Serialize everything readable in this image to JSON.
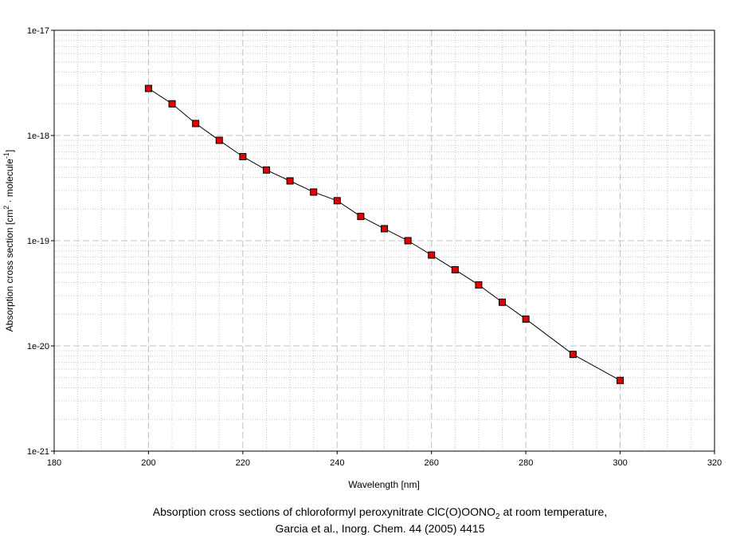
{
  "chart_data": {
    "type": "line",
    "title": "",
    "caption": {
      "line1_prefix": "Absorption cross sections of chloroformyl peroxynitrate ClC(O)OONO",
      "line1_sub": "2",
      "line1_suffix": " at room temperature,",
      "line2": "Garcia et al., Inorg. Chem. 44 (2005) 4415"
    },
    "xlabel": "Wavelength [nm]",
    "ylabel": {
      "prefix": "Absorption cross section [cm",
      "sup1": "2",
      "middle": " · molecule",
      "sup2": "-1",
      "suffix": "]"
    },
    "xlim": [
      180,
      320
    ],
    "ylim": [
      1e-21,
      1e-17
    ],
    "yscale": "log",
    "xticks": [
      180,
      200,
      220,
      240,
      260,
      280,
      300,
      320
    ],
    "xtick_labels": [
      "180",
      "200",
      "220",
      "240",
      "260",
      "280",
      "300",
      "320"
    ],
    "yticks": [
      1e-21,
      1e-20,
      1e-19,
      1e-18,
      1e-17
    ],
    "ytick_labels": [
      "1e-21",
      "1e-20",
      "1e-19",
      "1e-18",
      "1e-17"
    ],
    "grid": true,
    "legend": "none",
    "series": [
      {
        "x": [
          200,
          205,
          210,
          215,
          220,
          225,
          230,
          235,
          240,
          245,
          250,
          255,
          260,
          265,
          270,
          275,
          280,
          290,
          300
        ],
        "y": [
          2.8e-18,
          2e-18,
          1.3e-18,
          9e-19,
          6.3e-19,
          4.7e-19,
          3.7e-19,
          2.9e-19,
          2.4e-19,
          1.7e-19,
          1.3e-19,
          1e-19,
          7.3e-20,
          5.3e-20,
          3.8e-20,
          2.6e-20,
          1.8e-20,
          8.3e-21,
          4.7e-21
        ],
        "marker_color": "#e00000",
        "line_color": "#000000"
      }
    ]
  }
}
